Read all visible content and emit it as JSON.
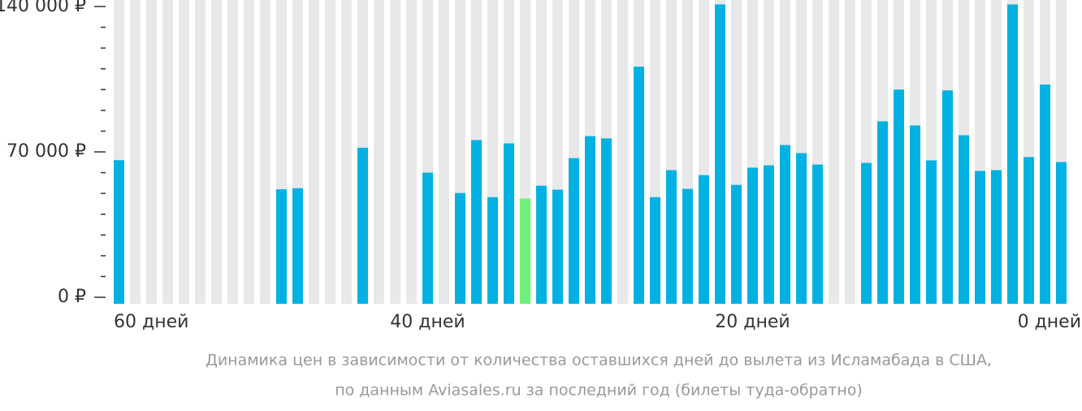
{
  "chart_data": {
    "type": "bar",
    "caption": [
      "Динамика цен в зависимости от количества оставшихся дней до вылета из Исламабада в США,",
      "по данным Aviasales.ru за последний год (билеты туда-обратно)"
    ],
    "categories": [
      "60 дней",
      null,
      null,
      null,
      null,
      null,
      null,
      null,
      null,
      null,
      null,
      null,
      null,
      null,
      null,
      null,
      null,
      null,
      null,
      "40 дней",
      null,
      null,
      null,
      null,
      null,
      null,
      null,
      null,
      null,
      null,
      null,
      null,
      null,
      null,
      null,
      null,
      null,
      null,
      null,
      "20 дней",
      null,
      null,
      null,
      null,
      null,
      null,
      null,
      null,
      null,
      null,
      null,
      null,
      null,
      null,
      null,
      null,
      null,
      null,
      "0 дней"
    ],
    "values": [
      66000,
      null,
      null,
      null,
      null,
      null,
      null,
      null,
      null,
      null,
      52000,
      52500,
      null,
      null,
      null,
      72000,
      null,
      null,
      null,
      60000,
      null,
      50200,
      75700,
      48200,
      74100,
      47500,
      53700,
      51800,
      67000,
      77600,
      76500,
      null,
      111000,
      48200,
      61200,
      52200,
      58800,
      141000,
      54100,
      62400,
      63500,
      73300,
      69400,
      63900,
      null,
      null,
      64700,
      84700,
      100000,
      82700,
      65900,
      99600,
      78000,
      60800,
      61200,
      141000,
      67500,
      102400,
      65100
    ],
    "color": "#00b1e1",
    "highlight": {
      "index": 25,
      "color": "#6ef07a"
    },
    "ylim": [
      0,
      140000
    ],
    "yticks": [
      {
        "value": 0,
        "label": "0 ₽"
      },
      {
        "value": 70000,
        "label": "70 000 ₽"
      },
      {
        "value": 140000,
        "label": "140 000 ₽"
      }
    ],
    "minor_yticks": [
      10000,
      20000,
      30000,
      40000,
      50000,
      60000,
      80000,
      90000,
      100000,
      110000,
      120000,
      130000
    ]
  }
}
